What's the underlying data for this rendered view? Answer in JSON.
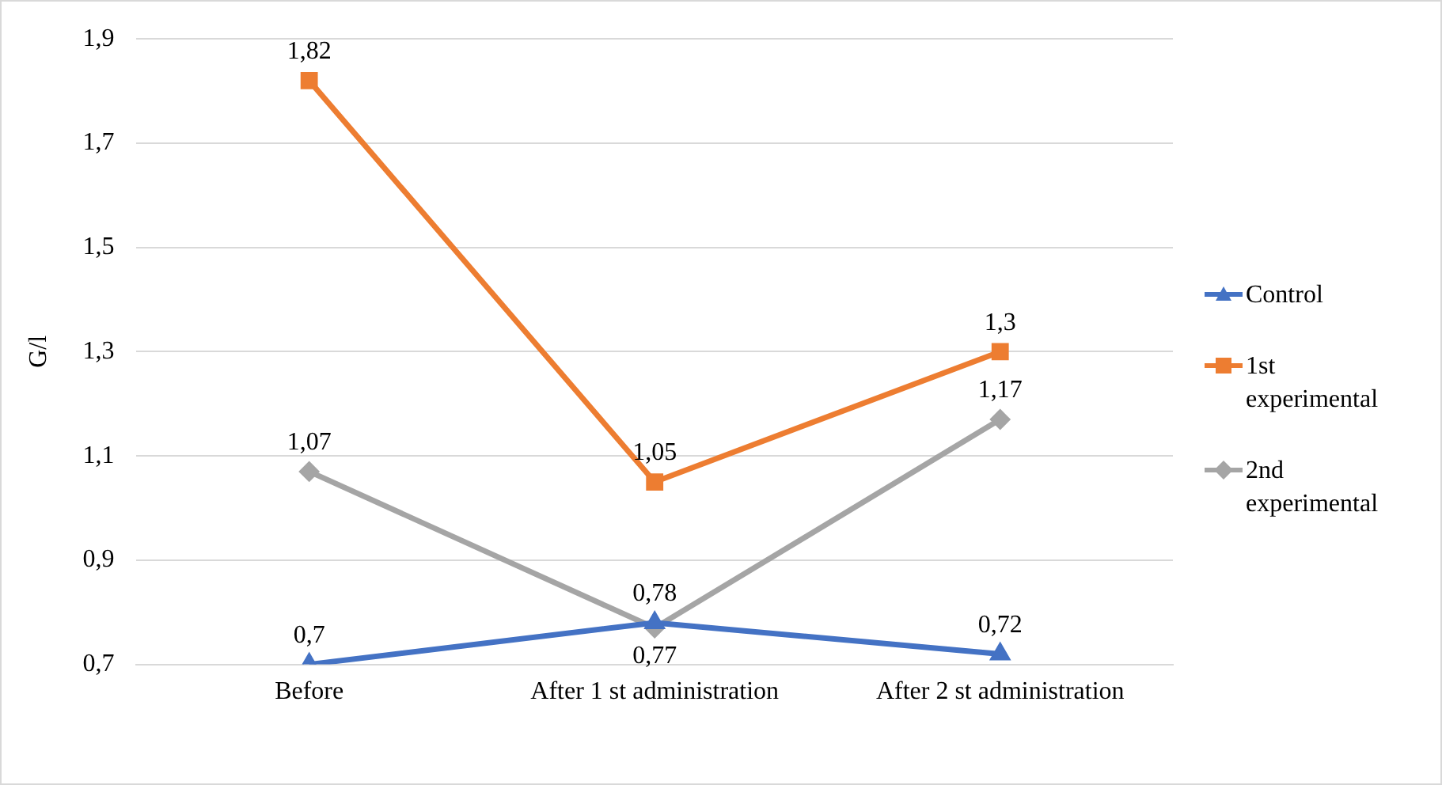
{
  "chart_data": {
    "type": "line",
    "ylabel": "G/l",
    "categories": [
      "Before",
      "After 1 st administration",
      "After 2 st administration"
    ],
    "series": [
      {
        "name": "Control",
        "color": "#4472c4",
        "marker": "triangle",
        "values": [
          0.7,
          0.78,
          0.72
        ],
        "value_labels": [
          "0,7",
          "0,78",
          "0,72"
        ]
      },
      {
        "name": "1st experimental",
        "color": "#ed7d31",
        "marker": "square",
        "values": [
          1.82,
          1.05,
          1.3
        ],
        "value_labels": [
          "1,82",
          "1,05",
          "1,3"
        ]
      },
      {
        "name": "2nd experimental",
        "color": "#a5a5a5",
        "marker": "diamond",
        "values": [
          1.07,
          0.77,
          1.17
        ],
        "value_labels": [
          "1,07",
          "0,77",
          "1,17"
        ]
      }
    ],
    "ylim": [
      0.7,
      1.9
    ],
    "yticks": [
      {
        "value": 0.7,
        "label": "0,7"
      },
      {
        "value": 0.9,
        "label": "0,9"
      },
      {
        "value": 1.1,
        "label": "1,1"
      },
      {
        "value": 1.3,
        "label": "1,3"
      },
      {
        "value": 1.5,
        "label": "1,5"
      },
      {
        "value": 1.7,
        "label": "1,7"
      },
      {
        "value": 1.9,
        "label": "1,9"
      }
    ],
    "grid": "y",
    "legend": "right"
  }
}
